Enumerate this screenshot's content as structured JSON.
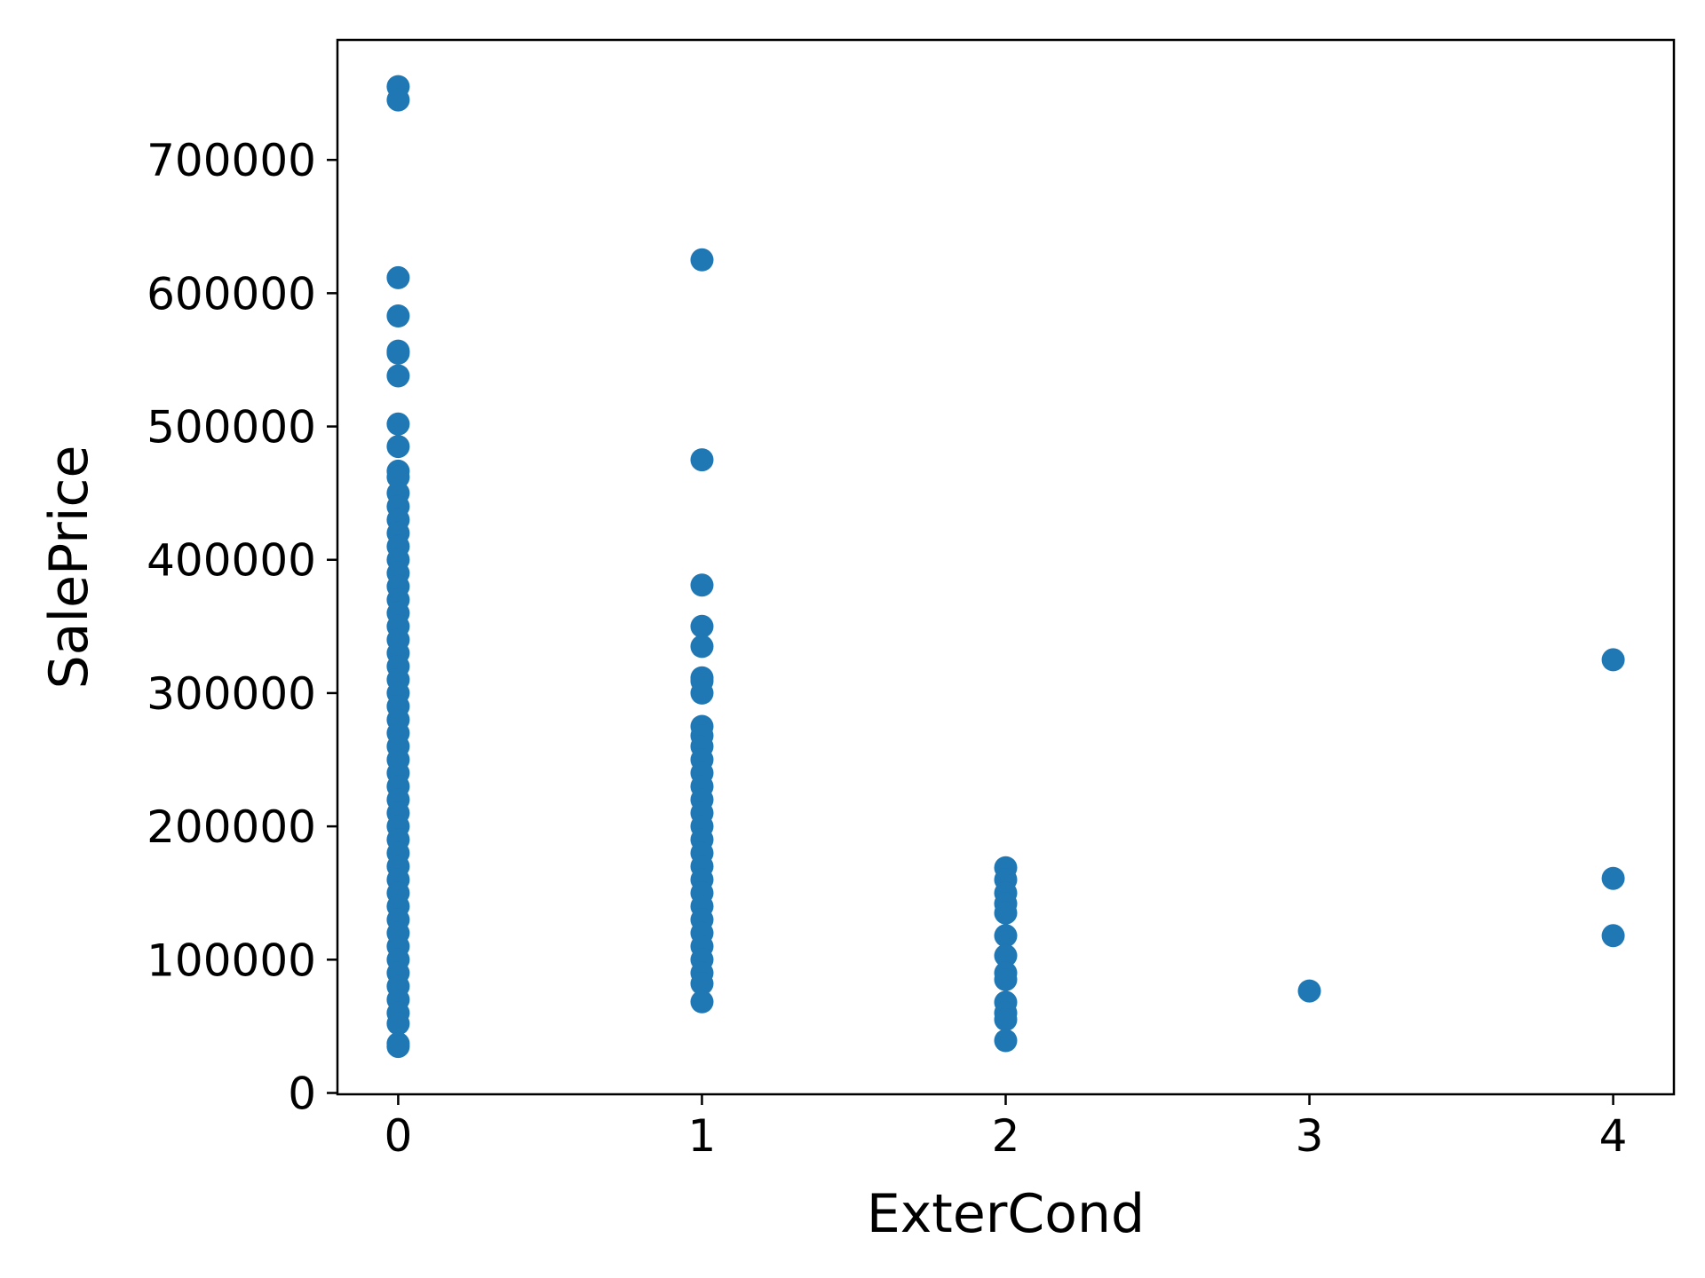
{
  "chart_data": {
    "type": "scatter",
    "title": "",
    "xlabel": "ExterCond",
    "ylabel": "SalePrice",
    "xlim": [
      -0.2,
      4.2
    ],
    "ylim": [
      -1000,
      790000
    ],
    "xticks": [
      0,
      1,
      2,
      3,
      4
    ],
    "yticks": [
      0,
      100000,
      200000,
      300000,
      400000,
      500000,
      600000,
      700000
    ],
    "grid": false,
    "legend": "none",
    "color": "#1f77b4",
    "points": [
      [
        0,
        755000
      ],
      [
        0,
        745000
      ],
      [
        0,
        611657
      ],
      [
        0,
        582933
      ],
      [
        0,
        556581
      ],
      [
        0,
        555000
      ],
      [
        0,
        538000
      ],
      [
        0,
        501837
      ],
      [
        0,
        485000
      ],
      [
        0,
        466500
      ],
      [
        0,
        462000
      ],
      [
        0,
        450000
      ],
      [
        0,
        440000
      ],
      [
        0,
        430000
      ],
      [
        0,
        420000
      ],
      [
        0,
        410000
      ],
      [
        0,
        400000
      ],
      [
        0,
        390000
      ],
      [
        0,
        380000
      ],
      [
        0,
        370000
      ],
      [
        0,
        360000
      ],
      [
        0,
        350000
      ],
      [
        0,
        340000
      ],
      [
        0,
        330000
      ],
      [
        0,
        320000
      ],
      [
        0,
        310000
      ],
      [
        0,
        300000
      ],
      [
        0,
        290000
      ],
      [
        0,
        280000
      ],
      [
        0,
        270000
      ],
      [
        0,
        260000
      ],
      [
        0,
        250000
      ],
      [
        0,
        240000
      ],
      [
        0,
        230000
      ],
      [
        0,
        220000
      ],
      [
        0,
        210000
      ],
      [
        0,
        200000
      ],
      [
        0,
        190000
      ],
      [
        0,
        180000
      ],
      [
        0,
        170000
      ],
      [
        0,
        160000
      ],
      [
        0,
        150000
      ],
      [
        0,
        140000
      ],
      [
        0,
        130000
      ],
      [
        0,
        120000
      ],
      [
        0,
        110000
      ],
      [
        0,
        100000
      ],
      [
        0,
        90000
      ],
      [
        0,
        80000
      ],
      [
        0,
        70000
      ],
      [
        0,
        60000
      ],
      [
        0,
        52000
      ],
      [
        0,
        37000
      ],
      [
        0,
        34900
      ],
      [
        1,
        625000
      ],
      [
        1,
        475000
      ],
      [
        1,
        381000
      ],
      [
        1,
        350000
      ],
      [
        1,
        335000
      ],
      [
        1,
        311500
      ],
      [
        1,
        309000
      ],
      [
        1,
        300000
      ],
      [
        1,
        275000
      ],
      [
        1,
        268000
      ],
      [
        1,
        260000
      ],
      [
        1,
        250000
      ],
      [
        1,
        240000
      ],
      [
        1,
        230000
      ],
      [
        1,
        220000
      ],
      [
        1,
        210000
      ],
      [
        1,
        200000
      ],
      [
        1,
        190000
      ],
      [
        1,
        180000
      ],
      [
        1,
        170000
      ],
      [
        1,
        160000
      ],
      [
        1,
        150000
      ],
      [
        1,
        140000
      ],
      [
        1,
        130000
      ],
      [
        1,
        120000
      ],
      [
        1,
        110000
      ],
      [
        1,
        100000
      ],
      [
        1,
        90000
      ],
      [
        1,
        82000
      ],
      [
        1,
        68400
      ],
      [
        2,
        169000
      ],
      [
        2,
        160000
      ],
      [
        2,
        150000
      ],
      [
        2,
        142000
      ],
      [
        2,
        135000
      ],
      [
        2,
        118000
      ],
      [
        2,
        103000
      ],
      [
        2,
        90000
      ],
      [
        2,
        85000
      ],
      [
        2,
        68000
      ],
      [
        2,
        60000
      ],
      [
        2,
        55000
      ],
      [
        2,
        39300
      ],
      [
        3,
        76500
      ],
      [
        4,
        325000
      ],
      [
        4,
        161000
      ],
      [
        4,
        118000
      ]
    ]
  }
}
